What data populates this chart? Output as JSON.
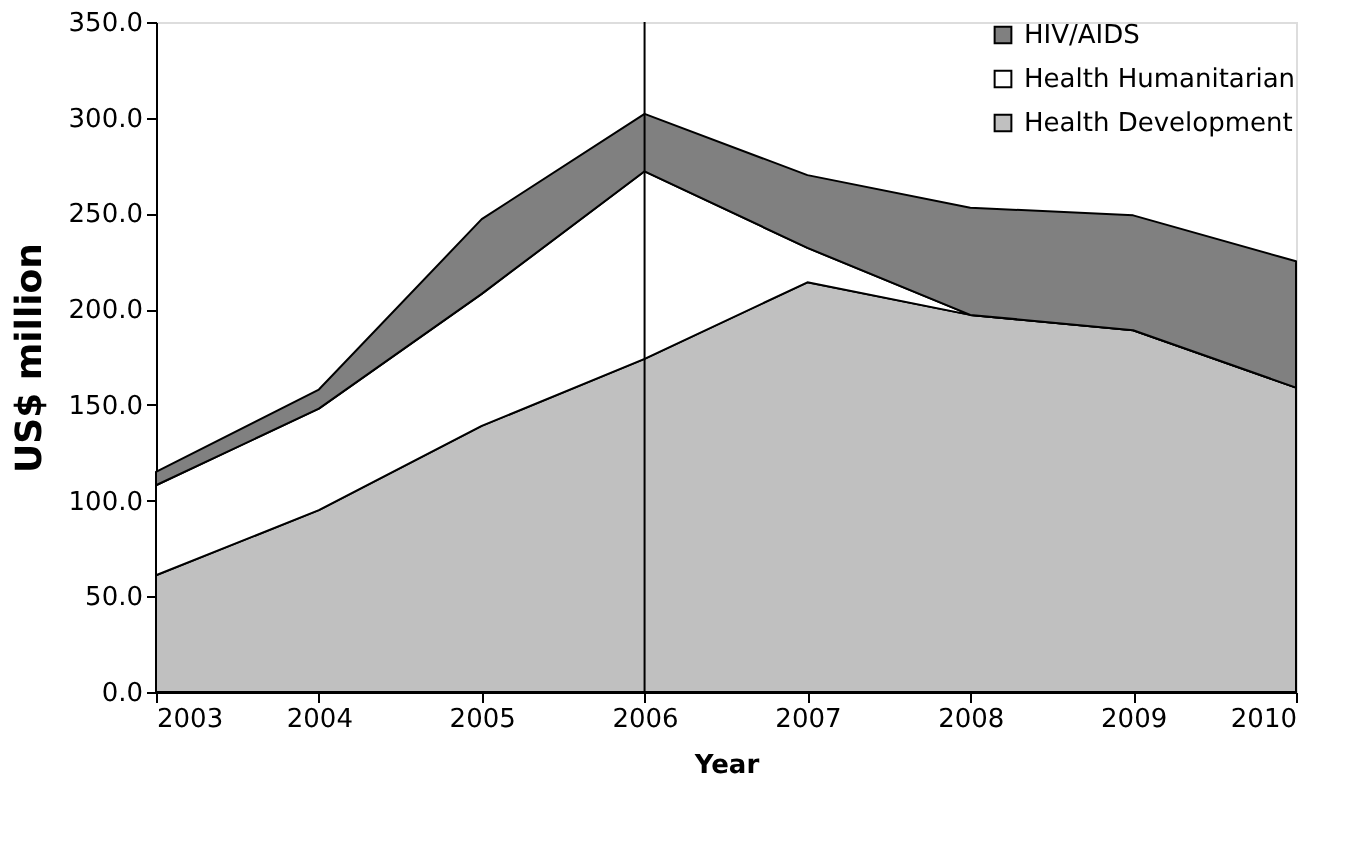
{
  "chart_data": {
    "type": "area",
    "stacked": true,
    "xlabel": "Year",
    "ylabel": "US$ million",
    "x": [
      2003,
      2004,
      2005,
      2006,
      2007,
      2008,
      2009,
      2010
    ],
    "xlim": [
      2003,
      2010
    ],
    "xticks": [
      2003,
      2004,
      2005,
      2006,
      2007,
      2008,
      2009,
      2010
    ],
    "ylim": [
      0,
      350
    ],
    "yticks": [
      {
        "value": 0,
        "label": "0.0"
      },
      {
        "value": 50,
        "label": "50.0"
      },
      {
        "value": 100,
        "label": "100.0"
      },
      {
        "value": 150,
        "label": "150.0"
      },
      {
        "value": 200,
        "label": "200.0"
      },
      {
        "value": 250,
        "label": "250.0"
      },
      {
        "value": 300,
        "label": "300.0"
      },
      {
        "value": 350,
        "label": "350.0"
      }
    ],
    "series": [
      {
        "name": "Health Development",
        "color": "#c0c0c0",
        "values": [
          61,
          95,
          139,
          174,
          214,
          197,
          189,
          159
        ]
      },
      {
        "name": "Health Humanitarian",
        "color": "#ffffff",
        "values": [
          47,
          53,
          69,
          98,
          18,
          0,
          0,
          0
        ]
      },
      {
        "name": "HIV/AIDS",
        "color": "#808080",
        "values": [
          7,
          10,
          39,
          30,
          38,
          56,
          60,
          66
        ]
      }
    ],
    "ref_lines": [
      {
        "axis": "x",
        "value": 2006,
        "color": "#000000"
      }
    ],
    "grid": false,
    "legend": "top right"
  }
}
